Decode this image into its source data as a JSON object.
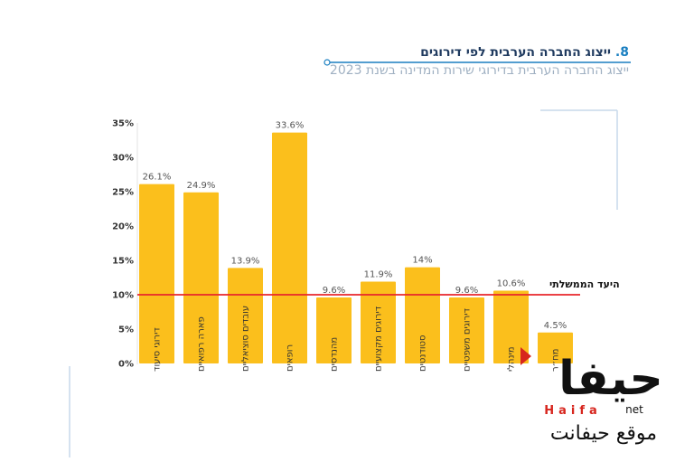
{
  "header": {
    "title_number": "8.",
    "title_text": "ייצוג החברה הערבית לפי דירוגים",
    "subtitle": "ייצוג החברה הערבית בדירוגי שירות המדינה בשנת 2023"
  },
  "chart_data": {
    "type": "bar",
    "categories": [
      "דירוגי סיעוד",
      "פארה רפואיים",
      "עובדים סוציאליים",
      "רופאים",
      "מהנדסים",
      "דירוגים מקצועיים",
      "סטודנטים",
      "דירוגים משפטיים",
      "מינהלי",
      "מח״ר"
    ],
    "values": [
      26.1,
      24.9,
      13.9,
      33.6,
      9.6,
      11.9,
      14,
      9.6,
      10.6,
      4.5
    ],
    "data_labels": [
      "26.1%",
      "24.9%",
      "13.9%",
      "33.6%",
      "9.6%",
      "11.9%",
      "14%",
      "9.6%",
      "10.6%",
      "4.5%"
    ],
    "yticks": [
      0,
      5,
      10,
      15,
      20,
      25,
      30,
      35
    ],
    "ytick_labels": [
      "0%",
      "5%",
      "10%",
      "15%",
      "20%",
      "25%",
      "30%",
      "35%"
    ],
    "ylim": [
      0,
      35
    ],
    "target_value": 10,
    "target_label": "היעד הממשלתי",
    "bar_color": "#fbbf1c",
    "target_color": "#e8262b",
    "grid": false
  },
  "logo": {
    "brand_arabic": "حيفا",
    "brand_latin": "Haifa",
    "brand_suffix": "net",
    "tagline": "موقع حيفانت",
    "accent_color": "#d7261e"
  }
}
